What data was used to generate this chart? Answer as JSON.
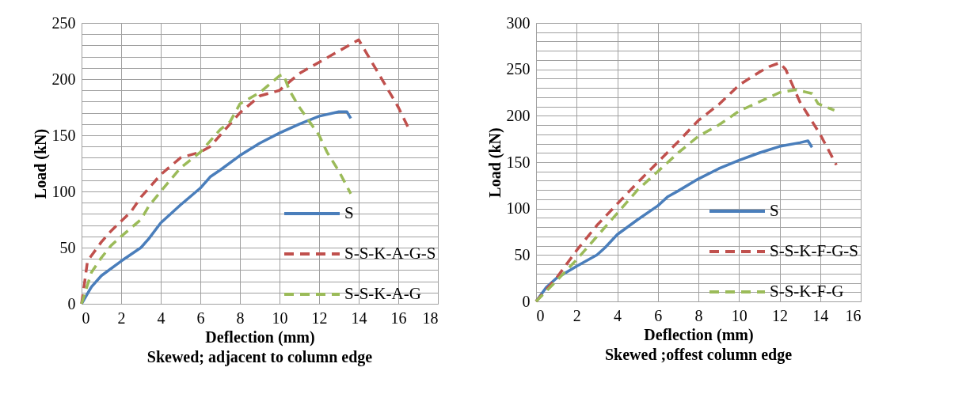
{
  "chart_data": [
    {
      "type": "line",
      "xlabel": "Deflection (mm)",
      "ylabel": "Load  (kN)",
      "annotations": [
        "Skewed; adjacent to column edge"
      ],
      "xlim": [
        0,
        18
      ],
      "xticks": [
        0,
        2,
        4,
        6,
        8,
        10,
        12,
        14,
        16,
        18
      ],
      "ylim": [
        0,
        250
      ],
      "yticks": [
        0,
        {
          "value": 10,
          "label": null
        },
        {
          "value": 20,
          "label": null
        },
        {
          "value": 30,
          "label": null
        },
        {
          "value": 40,
          "label": null
        },
        50,
        {
          "value": 60,
          "label": null
        },
        {
          "value": 70,
          "label": null
        },
        {
          "value": 80,
          "label": null
        },
        {
          "value": 90,
          "label": null
        },
        100,
        {
          "value": 110,
          "label": null
        },
        {
          "value": 120,
          "label": null
        },
        {
          "value": 130,
          "label": null
        },
        {
          "value": 140,
          "label": null
        },
        150,
        {
          "value": 160,
          "label": null
        },
        {
          "value": 170,
          "label": null
        },
        {
          "value": 180,
          "label": null
        },
        {
          "value": 190,
          "label": null
        },
        200,
        {
          "value": 210,
          "label": null
        },
        {
          "value": 220,
          "label": null
        },
        {
          "value": 230,
          "label": null
        },
        {
          "value": 240,
          "label": null
        },
        250
      ],
      "grid": true,
      "legend": "bottom right",
      "marker": "none",
      "series": [
        {
          "name": "S",
          "color": "#4a7ebb",
          "line_style": "solid",
          "x": [
            0,
            0.5,
            1,
            2,
            3,
            3.4,
            4,
            5,
            6,
            6.5,
            7,
            8,
            9,
            10,
            11,
            12,
            13,
            13.4,
            13.6
          ],
          "values": [
            0,
            15,
            25,
            38,
            50,
            58,
            72,
            88,
            103,
            113,
            119,
            132,
            143,
            152,
            160,
            167,
            171,
            171,
            165
          ]
        },
        {
          "name": "S-S-K-A-G-S",
          "color": "#c0504d",
          "line_style": "dashed",
          "x": [
            0,
            0.1,
            0.3,
            1,
            1.5,
            2.5,
            3,
            4,
            5,
            6,
            6.5,
            7,
            8,
            9,
            10,
            11,
            12,
            13,
            14,
            14.5,
            15,
            16,
            16.5
          ],
          "values": [
            0,
            12,
            38,
            55,
            65,
            82,
            95,
            115,
            130,
            135,
            140,
            150,
            170,
            185,
            190,
            205,
            215,
            225,
            235,
            220,
            205,
            175,
            157
          ]
        },
        {
          "name": "S-S-K-A-G",
          "color": "#9bbb59",
          "line_style": "dashed",
          "x": [
            0,
            0.5,
            1,
            1.5,
            2,
            3,
            3.4,
            4,
            5,
            6,
            7,
            7.5,
            8,
            9,
            10,
            10.2,
            10.5,
            11,
            12,
            12.4,
            13,
            13.6
          ],
          "values": [
            0,
            28,
            41,
            52,
            60,
            75,
            87,
            100,
            121,
            135,
            155,
            162,
            178,
            188,
            203,
            204,
            190,
            175,
            150,
            135,
            118,
            98
          ]
        }
      ]
    },
    {
      "type": "line",
      "xlabel": "Deflection (mm)",
      "ylabel": "Load  (kN)",
      "annotations": [
        "Skewed ;offest column edge"
      ],
      "xlim": [
        0,
        16
      ],
      "xticks": [
        0,
        2,
        4,
        6,
        8,
        10,
        12,
        14,
        16
      ],
      "ylim": [
        0,
        300
      ],
      "yticks": [
        0,
        {
          "value": 10,
          "label": null
        },
        {
          "value": 20,
          "label": null
        },
        {
          "value": 30,
          "label": null
        },
        {
          "value": 40,
          "label": null
        },
        50,
        {
          "value": 60,
          "label": null
        },
        {
          "value": 70,
          "label": null
        },
        {
          "value": 80,
          "label": null
        },
        {
          "value": 90,
          "label": null
        },
        100,
        {
          "value": 110,
          "label": null
        },
        {
          "value": 120,
          "label": null
        },
        {
          "value": 130,
          "label": null
        },
        {
          "value": 140,
          "label": null
        },
        150,
        {
          "value": 160,
          "label": null
        },
        {
          "value": 170,
          "label": null
        },
        {
          "value": 180,
          "label": null
        },
        {
          "value": 190,
          "label": null
        },
        200,
        {
          "value": 210,
          "label": null
        },
        {
          "value": 220,
          "label": null
        },
        {
          "value": 230,
          "label": null
        },
        {
          "value": 240,
          "label": null
        },
        250,
        {
          "value": 260,
          "label": null
        },
        {
          "value": 270,
          "label": null
        },
        {
          "value": 280,
          "label": null
        },
        {
          "value": 290,
          "label": null
        },
        300
      ],
      "grid": true,
      "legend": "bottom right",
      "marker": "none",
      "series": [
        {
          "name": "S",
          "color": "#4a7ebb",
          "line_style": "solid",
          "x": [
            0,
            0.5,
            1,
            2,
            3,
            3.4,
            4,
            5,
            6,
            6.5,
            7,
            8,
            9,
            10,
            11,
            12,
            13,
            13.4,
            13.6
          ],
          "values": [
            0,
            15,
            25,
            38,
            50,
            58,
            72,
            88,
            103,
            113,
            119,
            132,
            143,
            152,
            160,
            167,
            171,
            173,
            166
          ]
        },
        {
          "name": "S-S-K-F-G-S",
          "color": "#c0504d",
          "line_style": "dashed",
          "x": [
            0,
            1,
            2,
            3,
            4,
            5,
            6,
            7,
            8,
            9,
            10,
            11,
            11.5,
            12,
            12.3,
            13,
            14,
            14.8
          ],
          "values": [
            0,
            25,
            55,
            82,
            105,
            128,
            150,
            172,
            195,
            212,
            233,
            247,
            253,
            257,
            250,
            215,
            180,
            147
          ]
        },
        {
          "name": "S-S-K-F-G",
          "color": "#9bbb59",
          "line_style": "dashed",
          "x": [
            0,
            1,
            2,
            3,
            4,
            5,
            6,
            7,
            8,
            9,
            10,
            11,
            12,
            12.8,
            13.6,
            13.9,
            14.7
          ],
          "values": [
            0,
            22,
            45,
            70,
            95,
            120,
            140,
            160,
            178,
            190,
            205,
            215,
            225,
            228,
            224,
            213,
            206
          ]
        }
      ]
    }
  ]
}
